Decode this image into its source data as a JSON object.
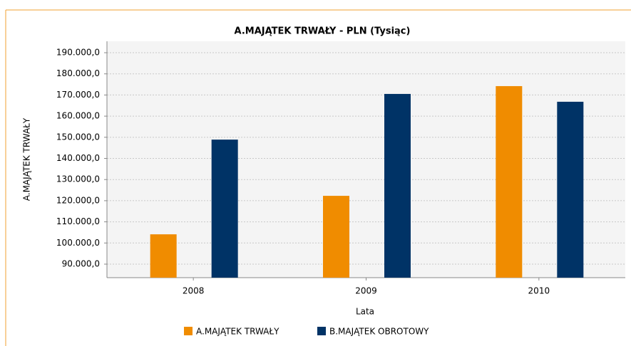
{
  "chart_data": {
    "type": "bar",
    "title": "A.MAJĄTEK TRWAŁY - PLN (Tysiąc)",
    "x_label": "Lata",
    "y_label": "A.MAJĄTEK TRWAŁY",
    "categories": [
      "2008",
      "2009",
      "2010"
    ],
    "series": [
      {
        "name": "A.MAJĄTEK TRWAŁY",
        "color": "#f08c00",
        "values": [
          104100,
          122300,
          174200
        ]
      },
      {
        "name": "B.MAJĄTEK OBROTOWY",
        "color": "#003366",
        "values": [
          148900,
          170500,
          166800
        ]
      }
    ],
    "ylim": [
      83600,
      195400
    ],
    "yticks": [
      {
        "value": 90000,
        "label": "90.000,0"
      },
      {
        "value": 100000,
        "label": "100.000,0"
      },
      {
        "value": 110000,
        "label": "110.000,0"
      },
      {
        "value": 120000,
        "label": "120.000,0"
      },
      {
        "value": 130000,
        "label": "130.000,0"
      },
      {
        "value": 140000,
        "label": "140.000,0"
      },
      {
        "value": 150000,
        "label": "150.000,0"
      },
      {
        "value": 160000,
        "label": "160.000,0"
      },
      {
        "value": 170000,
        "label": "170.000,0"
      },
      {
        "value": 180000,
        "label": "180.000,0"
      },
      {
        "value": 190000,
        "label": "190.000,0"
      }
    ],
    "grid": true,
    "legend": "bottom"
  }
}
